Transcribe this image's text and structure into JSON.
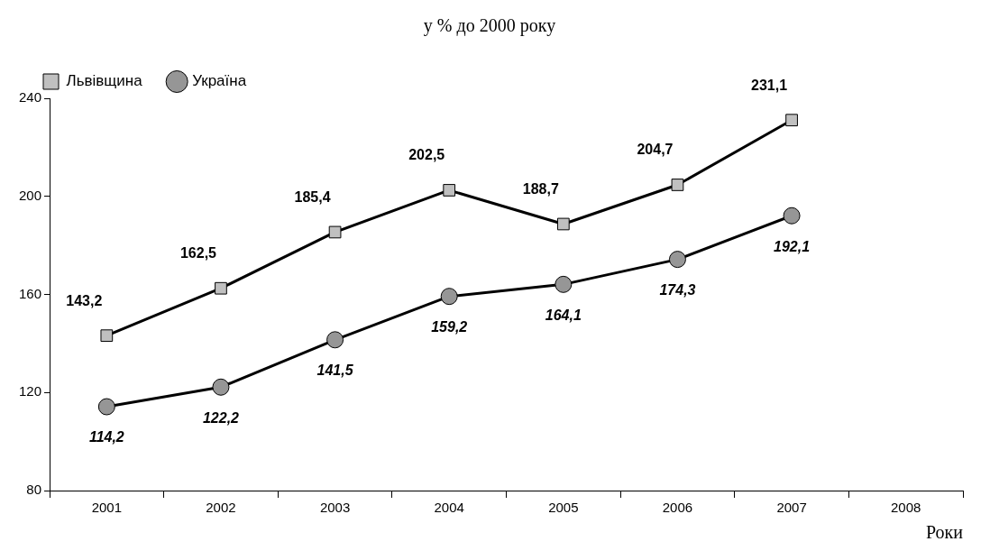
{
  "chart_data": {
    "type": "line",
    "title": "у % до 2000 року",
    "xlabel": "Роки",
    "categories": [
      "2001",
      "2002",
      "2003",
      "2004",
      "2005",
      "2006",
      "2007",
      "2008"
    ],
    "series": [
      {
        "name": "Львівщина",
        "color": "#c0c0c0",
        "marker": "square",
        "values": [
          143.2,
          162.5,
          185.4,
          202.5,
          188.7,
          204.7,
          231.1,
          null
        ],
        "value_labels": [
          "143,2",
          "162,5",
          "185,4",
          "202,5",
          "188,7",
          "204,7",
          "231,1",
          null
        ]
      },
      {
        "name": "Україна",
        "color": "#969696",
        "marker": "circle",
        "values": [
          114.2,
          122.2,
          141.5,
          159.2,
          164.1,
          174.3,
          192.1,
          null
        ],
        "value_labels": [
          "114,2",
          "122,2",
          "141,5",
          "159,2",
          "164,1",
          "174,3",
          "192,1",
          null
        ]
      }
    ],
    "ylim": [
      80,
      240
    ],
    "yticks": [
      80,
      120,
      160,
      200,
      240
    ],
    "grid": false,
    "legend": "top left",
    "line_style": "solid"
  }
}
